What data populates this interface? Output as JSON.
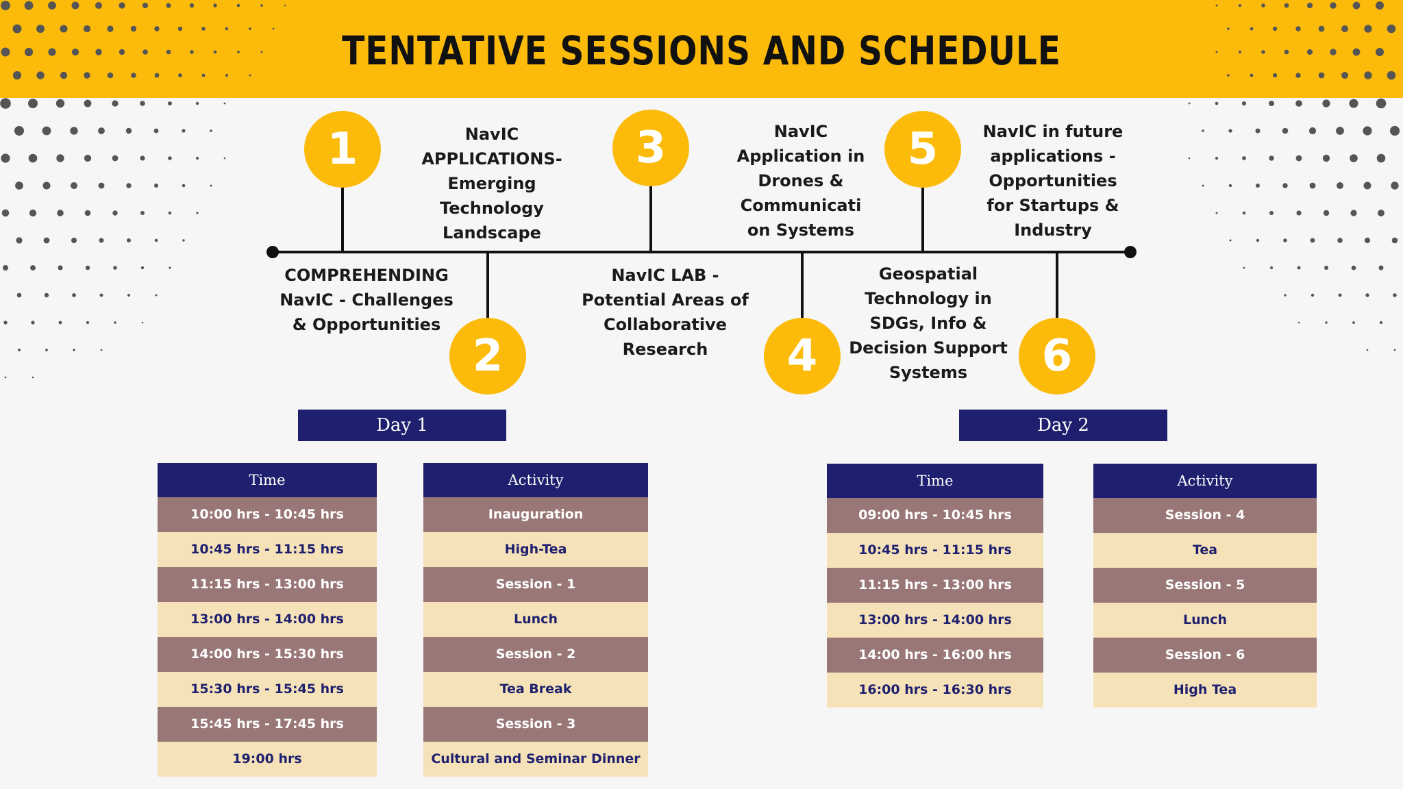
{
  "title": "TENTATIVE SESSIONS AND SCHEDULE",
  "colors": {
    "accent_yellow": "#fcbb0a",
    "navy": "#1e1f6e",
    "row_dark": "#9a7777",
    "row_light": "#f5e2b8",
    "dot_dark": "#555555"
  },
  "sessions": [
    {
      "number": "1",
      "lines": [
        "COMPREHENDING",
        "NavIC - Challenges",
        "& Opportunities"
      ]
    },
    {
      "number": "2",
      "lines": [
        "NavIC",
        "APPLICATIONS-",
        "Emerging",
        "Technology",
        "Landscape"
      ]
    },
    {
      "number": "3",
      "lines": [
        "NavIC LAB -",
        "Potential Areas of",
        "Collaborative",
        "Research"
      ]
    },
    {
      "number": "4",
      "lines": [
        "NavIC",
        "Application in",
        "Drones &",
        "Communicati",
        "on Systems"
      ]
    },
    {
      "number": "5",
      "lines": [
        "Geospatial",
        "Technology in",
        "SDGs, Info &",
        "Decision Support",
        "Systems"
      ]
    },
    {
      "number": "6",
      "lines": [
        "NavIC in future",
        "applications -",
        "Opportunities",
        "for Startups &",
        "Industry"
      ]
    }
  ],
  "day1": {
    "label": "Day 1",
    "time_header": "Time",
    "activity_header": "Activity",
    "rows": [
      {
        "time": "10:00 hrs - 10:45 hrs",
        "activity": "Inauguration"
      },
      {
        "time": "10:45 hrs - 11:15 hrs",
        "activity": "High-Tea"
      },
      {
        "time": "11:15 hrs - 13:00 hrs",
        "activity": "Session - 1"
      },
      {
        "time": "13:00 hrs - 14:00 hrs",
        "activity": "Lunch"
      },
      {
        "time": "14:00 hrs - 15:30 hrs",
        "activity": "Session - 2"
      },
      {
        "time": "15:30 hrs - 15:45 hrs",
        "activity": "Tea Break"
      },
      {
        "time": "15:45 hrs - 17:45 hrs",
        "activity": "Session - 3"
      },
      {
        "time": "19:00 hrs",
        "activity": "Cultural and Seminar Dinner"
      }
    ]
  },
  "day2": {
    "label": "Day 2",
    "time_header": "Time",
    "activity_header": "Activity",
    "rows": [
      {
        "time": "09:00 hrs - 10:45 hrs",
        "activity": "Session - 4"
      },
      {
        "time": "10:45 hrs - 11:15 hrs",
        "activity": "Tea"
      },
      {
        "time": "11:15 hrs - 13:00 hrs",
        "activity": "Session - 5"
      },
      {
        "time": "13:00 hrs - 14:00 hrs",
        "activity": "Lunch"
      },
      {
        "time": "14:00 hrs - 16:00 hrs",
        "activity": "Session - 6"
      },
      {
        "time": "16:00 hrs - 16:30 hrs",
        "activity": "High Tea"
      }
    ]
  }
}
